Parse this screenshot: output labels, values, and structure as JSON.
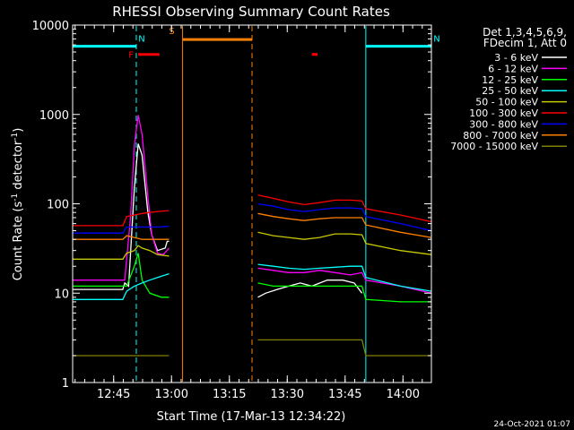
{
  "chart_data": {
    "type": "line",
    "title": "RHESSI Observing Summary Count Rates",
    "xlabel": "Start Time (17-Mar-13 12:34:22)",
    "ylabel_main": "Count Rate (s",
    "ylabel_sup1": "-1",
    "ylabel_mid": " detector",
    "ylabel_sup2": "-1",
    "ylabel_end": ")",
    "yscale": "log",
    "ylim": [
      1,
      10000
    ],
    "x_range_minutes": [
      0,
      93
    ],
    "x_ticks": [
      {
        "label": "12:45",
        "t": 10.63
      },
      {
        "label": "13:00",
        "t": 25.63
      },
      {
        "label": "13:15",
        "t": 40.63
      },
      {
        "label": "13:30",
        "t": 55.63
      },
      {
        "label": "13:45",
        "t": 70.63
      },
      {
        "label": "14:00",
        "t": 85.63
      }
    ],
    "y_ticks": [
      {
        "label": "1",
        "v": 1
      },
      {
        "label": "10",
        "v": 10
      },
      {
        "label": "100",
        "v": 100
      },
      {
        "label": "1000",
        "v": 1000
      },
      {
        "label": "10000",
        "v": 10000
      }
    ],
    "legend_header": [
      "Det 1,3,4,5,6,9,",
      "FDecim 1, Att 0"
    ],
    "legend_position": "right",
    "series": [
      {
        "name": "3 - 6 keV",
        "color": "#ffffff",
        "points": [
          [
            0,
            11
          ],
          [
            13,
            11
          ],
          [
            13.5,
            13
          ],
          [
            14.5,
            12
          ],
          [
            16,
            150
          ],
          [
            17,
            470
          ],
          [
            18,
            350
          ],
          [
            19.5,
            80
          ],
          [
            20.5,
            45
          ],
          [
            22,
            30
          ],
          [
            24,
            32
          ],
          [
            24.5,
            38
          ],
          [
            25,
            38
          ],
          [
            null,
            null
          ],
          [
            48,
            9
          ],
          [
            50,
            10
          ],
          [
            53,
            11
          ],
          [
            56,
            12
          ],
          [
            59,
            13
          ],
          [
            62,
            12
          ],
          [
            66,
            14
          ],
          [
            70,
            14
          ],
          [
            73,
            13
          ],
          [
            75,
            10
          ]
        ]
      },
      {
        "name": "6 - 12 keV",
        "color": "#ff00ff",
        "points": [
          [
            0,
            14
          ],
          [
            13,
            14
          ],
          [
            13.5,
            14
          ],
          [
            15,
            70
          ],
          [
            16,
            450
          ],
          [
            17,
            980
          ],
          [
            18,
            600
          ],
          [
            19.5,
            120
          ],
          [
            20.5,
            45
          ],
          [
            22,
            28
          ],
          [
            23.5,
            27
          ],
          [
            25,
            32
          ],
          [
            null,
            null
          ],
          [
            48,
            19
          ],
          [
            52,
            18
          ],
          [
            56,
            17
          ],
          [
            60,
            17
          ],
          [
            64,
            18
          ],
          [
            68,
            17
          ],
          [
            72,
            16
          ],
          [
            75,
            17
          ],
          [
            76,
            14
          ],
          [
            85,
            12
          ],
          [
            93,
            10
          ]
        ]
      },
      {
        "name": "12 - 25 keV",
        "color": "#00ff00",
        "points": [
          [
            0,
            12
          ],
          [
            13,
            12
          ],
          [
            14,
            12
          ],
          [
            16,
            20
          ],
          [
            17,
            28
          ],
          [
            18,
            14
          ],
          [
            20,
            10
          ],
          [
            23,
            9
          ],
          [
            25,
            9
          ],
          [
            null,
            null
          ],
          [
            48,
            13
          ],
          [
            52,
            12
          ],
          [
            56,
            12
          ],
          [
            60,
            12
          ],
          [
            64,
            12
          ],
          [
            68,
            12
          ],
          [
            72,
            12
          ],
          [
            75,
            12
          ],
          [
            76,
            8.5
          ],
          [
            85,
            8
          ],
          [
            93,
            8
          ]
        ]
      },
      {
        "name": "25 - 50 keV",
        "color": "#00ffff",
        "points": [
          [
            0,
            8.5
          ],
          [
            13,
            8.5
          ],
          [
            14,
            10.5
          ],
          [
            16,
            12
          ],
          [
            18,
            13
          ],
          [
            20,
            14
          ],
          [
            22,
            15
          ],
          [
            25,
            16.5
          ],
          [
            null,
            null
          ],
          [
            48,
            21
          ],
          [
            52,
            20
          ],
          [
            56,
            19
          ],
          [
            60,
            18.5
          ],
          [
            64,
            19
          ],
          [
            68,
            19.5
          ],
          [
            72,
            20
          ],
          [
            75,
            20
          ],
          [
            76,
            15
          ],
          [
            85,
            12
          ],
          [
            93,
            10.5
          ]
        ]
      },
      {
        "name": "50 - 100 keV",
        "color": "#c8c800",
        "points": [
          [
            0,
            24
          ],
          [
            13,
            24
          ],
          [
            14,
            28
          ],
          [
            16,
            30
          ],
          [
            17,
            34
          ],
          [
            18,
            32
          ],
          [
            20,
            30
          ],
          [
            22,
            27
          ],
          [
            25,
            26
          ],
          [
            null,
            null
          ],
          [
            48,
            48
          ],
          [
            52,
            44
          ],
          [
            56,
            42
          ],
          [
            60,
            40
          ],
          [
            64,
            42
          ],
          [
            68,
            46
          ],
          [
            72,
            46
          ],
          [
            75,
            45
          ],
          [
            76,
            36
          ],
          [
            85,
            30
          ],
          [
            93,
            27
          ]
        ]
      },
      {
        "name": "100 - 300 keV",
        "color": "#ff0000",
        "points": [
          [
            0,
            57
          ],
          [
            13,
            57
          ],
          [
            14,
            72
          ],
          [
            16,
            75
          ],
          [
            18,
            78
          ],
          [
            20,
            80
          ],
          [
            22,
            82
          ],
          [
            25,
            84
          ],
          [
            null,
            null
          ],
          [
            48,
            125
          ],
          [
            52,
            115
          ],
          [
            56,
            105
          ],
          [
            60,
            98
          ],
          [
            64,
            103
          ],
          [
            68,
            110
          ],
          [
            72,
            110
          ],
          [
            75,
            108
          ],
          [
            76,
            88
          ],
          [
            85,
            75
          ],
          [
            93,
            63
          ]
        ]
      },
      {
        "name": "300 - 800 keV",
        "color": "#0000ff",
        "points": [
          [
            0,
            47
          ],
          [
            13,
            47
          ],
          [
            14,
            55
          ],
          [
            16,
            55
          ],
          [
            18,
            55
          ],
          [
            20,
            55
          ],
          [
            22,
            55
          ],
          [
            25,
            56
          ],
          [
            null,
            null
          ],
          [
            48,
            100
          ],
          [
            52,
            94
          ],
          [
            56,
            86
          ],
          [
            60,
            82
          ],
          [
            64,
            86
          ],
          [
            68,
            90
          ],
          [
            72,
            90
          ],
          [
            75,
            88
          ],
          [
            76,
            72
          ],
          [
            85,
            60
          ],
          [
            93,
            50
          ]
        ]
      },
      {
        "name": "800 - 7000 keV",
        "color": "#ff8000",
        "points": [
          [
            0,
            40
          ],
          [
            13,
            40
          ],
          [
            14,
            44
          ],
          [
            16,
            42
          ],
          [
            18,
            40
          ],
          [
            20,
            40
          ],
          [
            22,
            40
          ],
          [
            25,
            40
          ],
          [
            null,
            null
          ],
          [
            48,
            78
          ],
          [
            52,
            72
          ],
          [
            56,
            68
          ],
          [
            60,
            65
          ],
          [
            64,
            68
          ],
          [
            68,
            70
          ],
          [
            72,
            70
          ],
          [
            75,
            70
          ],
          [
            76,
            58
          ],
          [
            85,
            48
          ],
          [
            93,
            42
          ]
        ]
      },
      {
        "name": "7000 - 15000 keV",
        "color": "#808000",
        "points": [
          [
            0,
            2
          ],
          [
            13,
            2
          ],
          [
            14,
            2
          ],
          [
            18,
            2
          ],
          [
            22,
            2
          ],
          [
            25,
            2
          ],
          [
            null,
            null
          ],
          [
            48,
            3
          ],
          [
            56,
            3
          ],
          [
            64,
            3
          ],
          [
            68,
            3
          ],
          [
            72,
            3
          ],
          [
            75,
            3
          ],
          [
            76,
            2
          ],
          [
            85,
            2
          ],
          [
            93,
            2
          ]
        ]
      }
    ],
    "flags": [
      {
        "label": "F",
        "color": "#ff0000",
        "x0": 17,
        "x1": 22.5,
        "level": 4700
      },
      {
        "label": "N",
        "color": "#00ffff",
        "x0": 0,
        "x1": 16.5,
        "level": 5800
      },
      {
        "label": "N",
        "color": "#00ffff",
        "x0": 76,
        "x1": 93,
        "level": 5800
      },
      {
        "label": "S",
        "color": "#ff8000",
        "x0": 28.5,
        "x1": 46.5,
        "level": 6900
      },
      {
        "label": "",
        "color": "#ff0000",
        "x0": 62,
        "x1": 63.5,
        "level": 4700
      }
    ],
    "vlines": [
      {
        "t": 16.5,
        "color": "#00ffff",
        "dash": true
      },
      {
        "t": 28.5,
        "color": "#ff8000",
        "dash": false
      },
      {
        "t": 46.5,
        "color": "#ff8000",
        "dash": true
      },
      {
        "t": 76,
        "color": "#00ffff",
        "dash": false
      },
      {
        "t": 93,
        "color": "#00ffff",
        "dash": true
      }
    ],
    "grid": false,
    "footer_date": "24-Oct-2021 01:07"
  }
}
